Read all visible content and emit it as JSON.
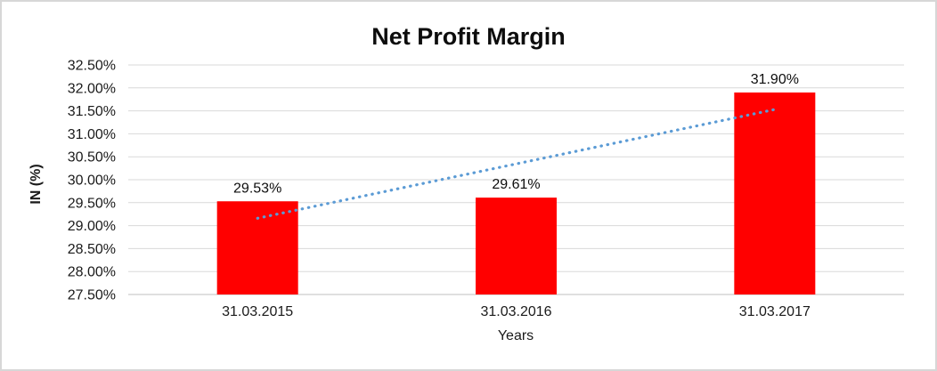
{
  "chart_data": {
    "type": "bar",
    "title": "Net Profit Margin",
    "xlabel": "Years",
    "ylabel": "IN (%)",
    "categories": [
      "31.03.2015",
      "31.03.2016",
      "31.03.2017"
    ],
    "values": [
      29.53,
      29.61,
      31.9
    ],
    "data_labels": [
      "29.53%",
      "29.61%",
      "31.90%"
    ],
    "ylim": [
      27.5,
      32.5
    ],
    "ytick_step": 0.5,
    "ytick_suffix": "%",
    "grid": true,
    "legend": "none",
    "bar_color": "#FF0000",
    "gridline_color": "#D9D9D9",
    "axis_line_color": "#BFBFBF",
    "trendline": {
      "style": "dotted",
      "color": "#5B9BD5",
      "start_value": 29.16,
      "end_value": 31.53
    }
  }
}
